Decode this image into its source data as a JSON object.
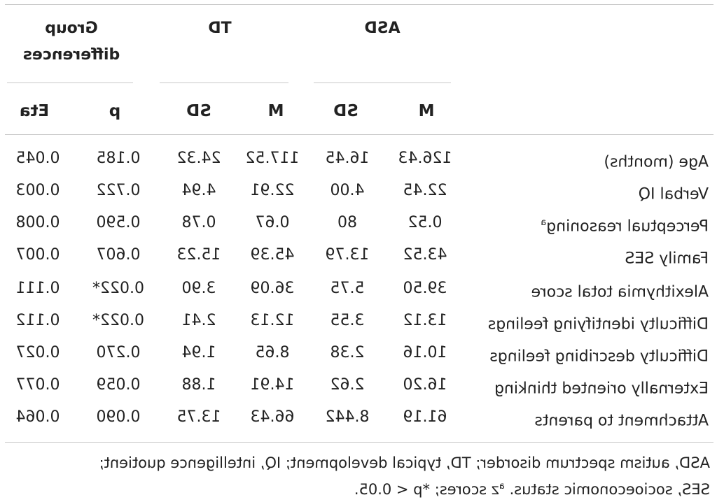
{
  "headers": {
    "asd": "ASD",
    "td": "TD",
    "group_line1": "Group",
    "group_line2": "differences",
    "m": "M",
    "sd": "SD",
    "p": "p",
    "eta": "Eta"
  },
  "rows": [
    {
      "label": "Age (months)",
      "sup": "",
      "asd_m": "126.43",
      "asd_sd": "16.45",
      "td_m": "117.52",
      "td_sd": "24.32",
      "p": "0.185",
      "eta": "0.045"
    },
    {
      "label": "Verbal IQ",
      "sup": "",
      "asd_m": "22.45",
      "asd_sd": "4.00",
      "td_m": "22.91",
      "td_sd": "4.94",
      "p": "0.722",
      "eta": "0.003"
    },
    {
      "label": "Perceptual reasoning",
      "sup": "a",
      "asd_m": "0.52",
      "asd_sd": "80",
      "td_m": "0.67",
      "td_sd": "0.78",
      "p": "0.590",
      "eta": "0.008"
    },
    {
      "label": "Family SES",
      "sup": "",
      "asd_m": "43.52",
      "asd_sd": "13.79",
      "td_m": "45.39",
      "td_sd": "15.23",
      "p": "0.607",
      "eta": "0.007"
    },
    {
      "label": "Alexithymia total score",
      "sup": "",
      "asd_m": "39.50",
      "asd_sd": "5.75",
      "td_m": "36.09",
      "td_sd": "3.90",
      "p": "0.022*",
      "eta": "0.111"
    },
    {
      "label": "Difficulty identifying feelings",
      "sup": "",
      "asd_m": "13.12",
      "asd_sd": "3.55",
      "td_m": "12.13",
      "td_sd": "2.41",
      "p": "0.022*",
      "eta": "0.112"
    },
    {
      "label": "Difficulty describing feelings",
      "sup": "",
      "asd_m": "10.16",
      "asd_sd": "2.38",
      "td_m": "8.65",
      "td_sd": "1.94",
      "p": "0.270",
      "eta": "0.027"
    },
    {
      "label": "Externally oriented thinking",
      "sup": "",
      "asd_m": "16.20",
      "asd_sd": "2.62",
      "td_m": "14.91",
      "td_sd": "1.88",
      "p": "0.059",
      "eta": "0.077"
    },
    {
      "label": "Attachment to parents",
      "sup": "",
      "asd_m": "61.19",
      "asd_sd": "8.442",
      "td_m": "66.43",
      "td_sd": "13.75",
      "p": "0.090",
      "eta": "0.064"
    }
  ],
  "footnote": {
    "line1": "ASD, autism spectrum disorder; TD, typical development; IQ, intelligence quotient;",
    "line2_pre": "SES, socioeconomic status. ",
    "line2_sup": "a",
    "line2_post": "z scores; *p < 0.05."
  }
}
